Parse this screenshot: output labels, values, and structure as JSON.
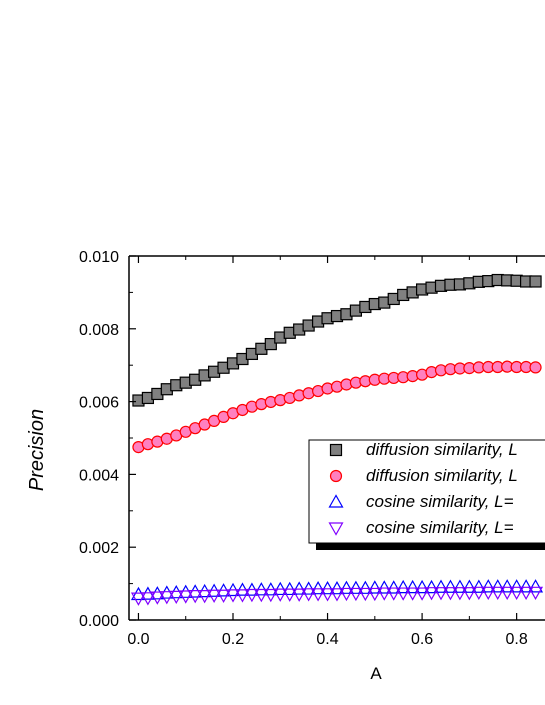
{
  "chart_data": {
    "type": "scatter",
    "xlabel": "A",
    "ylabel": "Precision",
    "xlim": [
      -0.02,
      0.86
    ],
    "ylim": [
      0.0,
      0.01
    ],
    "x_ticks": [
      "0.0",
      "0.2",
      "0.4",
      "0.6",
      "0.8"
    ],
    "x_tick_values": [
      0.0,
      0.2,
      0.4,
      0.6,
      0.8
    ],
    "y_ticks": [
      "0.000",
      "0.002",
      "0.004",
      "0.006",
      "0.008",
      "0.010"
    ],
    "y_tick_values": [
      0.0,
      0.002,
      0.004,
      0.006,
      0.008,
      0.01
    ],
    "grid": false,
    "legend_position": "right",
    "series": [
      {
        "name": "diffusion similarity, L",
        "marker": "square",
        "fill": "#808080",
        "stroke": "#000000",
        "points": [
          [
            0.0,
            0.00603
          ],
          [
            0.02,
            0.0061
          ],
          [
            0.04,
            0.00621
          ],
          [
            0.06,
            0.00634
          ],
          [
            0.08,
            0.00645
          ],
          [
            0.1,
            0.00652
          ],
          [
            0.12,
            0.0066
          ],
          [
            0.14,
            0.00672
          ],
          [
            0.16,
            0.00682
          ],
          [
            0.18,
            0.00693
          ],
          [
            0.2,
            0.00705
          ],
          [
            0.22,
            0.00717
          ],
          [
            0.24,
            0.00731
          ],
          [
            0.26,
            0.00745
          ],
          [
            0.28,
            0.00758
          ],
          [
            0.3,
            0.00776
          ],
          [
            0.32,
            0.00789
          ],
          [
            0.34,
            0.00798
          ],
          [
            0.36,
            0.00809
          ],
          [
            0.38,
            0.0082
          ],
          [
            0.4,
            0.00829
          ],
          [
            0.42,
            0.00835
          ],
          [
            0.44,
            0.0084
          ],
          [
            0.46,
            0.0085
          ],
          [
            0.48,
            0.0086
          ],
          [
            0.5,
            0.00868
          ],
          [
            0.52,
            0.00872
          ],
          [
            0.54,
            0.00882
          ],
          [
            0.56,
            0.00893
          ],
          [
            0.58,
            0.009
          ],
          [
            0.6,
            0.00908
          ],
          [
            0.62,
            0.00913
          ],
          [
            0.64,
            0.00918
          ],
          [
            0.66,
            0.00921
          ],
          [
            0.68,
            0.00922
          ],
          [
            0.7,
            0.00925
          ],
          [
            0.72,
            0.00929
          ],
          [
            0.74,
            0.00931
          ],
          [
            0.76,
            0.00934
          ],
          [
            0.78,
            0.00933
          ],
          [
            0.8,
            0.00932
          ],
          [
            0.82,
            0.0093
          ],
          [
            0.84,
            0.0093
          ]
        ]
      },
      {
        "name": "diffusion similarity, L",
        "marker": "circle",
        "fill": "#ff80c0",
        "stroke": "#ff0000",
        "points": [
          [
            0.0,
            0.00475
          ],
          [
            0.02,
            0.00483
          ],
          [
            0.04,
            0.0049
          ],
          [
            0.06,
            0.00498
          ],
          [
            0.08,
            0.00507
          ],
          [
            0.1,
            0.00517
          ],
          [
            0.12,
            0.00527
          ],
          [
            0.14,
            0.00537
          ],
          [
            0.16,
            0.00547
          ],
          [
            0.18,
            0.00558
          ],
          [
            0.2,
            0.00568
          ],
          [
            0.22,
            0.00577
          ],
          [
            0.24,
            0.00586
          ],
          [
            0.26,
            0.00593
          ],
          [
            0.28,
            0.00599
          ],
          [
            0.3,
            0.00604
          ],
          [
            0.32,
            0.0061
          ],
          [
            0.34,
            0.00617
          ],
          [
            0.36,
            0.00623
          ],
          [
            0.38,
            0.00629
          ],
          [
            0.4,
            0.00636
          ],
          [
            0.42,
            0.00641
          ],
          [
            0.44,
            0.00647
          ],
          [
            0.46,
            0.00652
          ],
          [
            0.48,
            0.00656
          ],
          [
            0.5,
            0.0066
          ],
          [
            0.52,
            0.00663
          ],
          [
            0.54,
            0.00665
          ],
          [
            0.56,
            0.00667
          ],
          [
            0.58,
            0.0067
          ],
          [
            0.6,
            0.00674
          ],
          [
            0.62,
            0.00681
          ],
          [
            0.64,
            0.00686
          ],
          [
            0.66,
            0.00689
          ],
          [
            0.68,
            0.00691
          ],
          [
            0.7,
            0.00692
          ],
          [
            0.72,
            0.00694
          ],
          [
            0.74,
            0.00695
          ],
          [
            0.76,
            0.00695
          ],
          [
            0.78,
            0.00696
          ],
          [
            0.8,
            0.00695
          ],
          [
            0.82,
            0.00695
          ],
          [
            0.84,
            0.00694
          ]
        ]
      },
      {
        "name": "cosine similarity, L=",
        "marker": "triangle-up",
        "fill": "none",
        "stroke": "#0000ff",
        "points": [
          [
            0.0,
            0.0007
          ],
          [
            0.02,
            0.00071
          ],
          [
            0.04,
            0.00072
          ],
          [
            0.06,
            0.00074
          ],
          [
            0.08,
            0.00075
          ],
          [
            0.1,
            0.00076
          ],
          [
            0.12,
            0.00077
          ],
          [
            0.14,
            0.00078
          ],
          [
            0.16,
            0.00079
          ],
          [
            0.18,
            0.0008
          ],
          [
            0.2,
            0.00081
          ],
          [
            0.22,
            0.00082
          ],
          [
            0.24,
            0.00082
          ],
          [
            0.26,
            0.00083
          ],
          [
            0.28,
            0.00083
          ],
          [
            0.3,
            0.00084
          ],
          [
            0.32,
            0.00084
          ],
          [
            0.34,
            0.00085
          ],
          [
            0.36,
            0.00085
          ],
          [
            0.38,
            0.00086
          ],
          [
            0.4,
            0.00086
          ],
          [
            0.42,
            0.00086
          ],
          [
            0.44,
            0.00087
          ],
          [
            0.46,
            0.00087
          ],
          [
            0.48,
            0.00087
          ],
          [
            0.5,
            0.00088
          ],
          [
            0.52,
            0.00088
          ],
          [
            0.54,
            0.00088
          ],
          [
            0.56,
            0.00089
          ],
          [
            0.58,
            0.00089
          ],
          [
            0.6,
            0.00089
          ],
          [
            0.62,
            0.00089
          ],
          [
            0.64,
            0.0009
          ],
          [
            0.66,
            0.0009
          ],
          [
            0.68,
            0.0009
          ],
          [
            0.7,
            0.0009
          ],
          [
            0.72,
            0.0009
          ],
          [
            0.74,
            0.00091
          ],
          [
            0.76,
            0.00091
          ],
          [
            0.78,
            0.00091
          ],
          [
            0.8,
            0.00091
          ],
          [
            0.82,
            0.00091
          ],
          [
            0.84,
            0.00091
          ]
        ]
      },
      {
        "name": "cosine similarity, L=",
        "marker": "triangle-down",
        "fill": "none",
        "stroke": "#8000ff",
        "points": [
          [
            0.0,
            0.0006
          ],
          [
            0.02,
            0.00061
          ],
          [
            0.04,
            0.00063
          ],
          [
            0.06,
            0.00064
          ],
          [
            0.08,
            0.00065
          ],
          [
            0.1,
            0.00066
          ],
          [
            0.12,
            0.00067
          ],
          [
            0.14,
            0.00067
          ],
          [
            0.16,
            0.00068
          ],
          [
            0.18,
            0.00068
          ],
          [
            0.2,
            0.00069
          ],
          [
            0.22,
            0.00069
          ],
          [
            0.24,
            0.0007
          ],
          [
            0.26,
            0.0007
          ],
          [
            0.28,
            0.0007
          ],
          [
            0.3,
            0.00071
          ],
          [
            0.32,
            0.00071
          ],
          [
            0.34,
            0.00071
          ],
          [
            0.36,
            0.00072
          ],
          [
            0.38,
            0.00072
          ],
          [
            0.4,
            0.00072
          ],
          [
            0.42,
            0.00072
          ],
          [
            0.44,
            0.00073
          ],
          [
            0.46,
            0.00073
          ],
          [
            0.48,
            0.00073
          ],
          [
            0.5,
            0.00073
          ],
          [
            0.52,
            0.00074
          ],
          [
            0.54,
            0.00074
          ],
          [
            0.56,
            0.00074
          ],
          [
            0.58,
            0.00074
          ],
          [
            0.6,
            0.00074
          ],
          [
            0.62,
            0.00075
          ],
          [
            0.64,
            0.00075
          ],
          [
            0.66,
            0.00075
          ],
          [
            0.68,
            0.00075
          ],
          [
            0.7,
            0.00075
          ],
          [
            0.72,
            0.00076
          ],
          [
            0.74,
            0.00076
          ],
          [
            0.76,
            0.00076
          ],
          [
            0.78,
            0.00076
          ],
          [
            0.8,
            0.00076
          ],
          [
            0.82,
            0.00076
          ],
          [
            0.84,
            0.00076
          ]
        ]
      }
    ]
  }
}
